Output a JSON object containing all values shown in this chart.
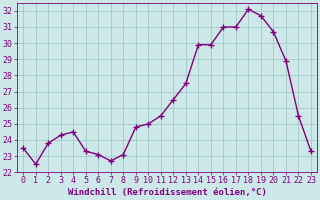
{
  "x": [
    0,
    1,
    2,
    3,
    4,
    5,
    6,
    7,
    8,
    9,
    10,
    11,
    12,
    13,
    14,
    15,
    16,
    17,
    18,
    19,
    20,
    21,
    22,
    23
  ],
  "y": [
    23.5,
    22.5,
    23.8,
    24.3,
    24.5,
    23.3,
    23.1,
    22.7,
    23.1,
    24.8,
    25.0,
    25.5,
    26.5,
    27.5,
    29.9,
    29.9,
    31.0,
    31.0,
    32.1,
    31.7,
    30.7,
    28.9,
    25.5,
    23.3
  ],
  "line_color": "#800080",
  "marker": "+",
  "marker_size": 4,
  "linewidth": 1.0,
  "markeredgewidth": 1.0,
  "xlabel": "Windchill (Refroidissement éolien,°C)",
  "xlim": [
    -0.5,
    23.5
  ],
  "ylim": [
    22,
    32.5
  ],
  "yticks": [
    22,
    23,
    24,
    25,
    26,
    27,
    28,
    29,
    30,
    31,
    32
  ],
  "xticks": [
    0,
    1,
    2,
    3,
    4,
    5,
    6,
    7,
    8,
    9,
    10,
    11,
    12,
    13,
    14,
    15,
    16,
    17,
    18,
    19,
    20,
    21,
    22,
    23
  ],
  "bg_color": "#cde8e8",
  "grid_color": "#aacccc",
  "tick_color": "#800080",
  "label_color": "#800080",
  "xlabel_fontsize": 6.5,
  "tick_fontsize": 6.0
}
